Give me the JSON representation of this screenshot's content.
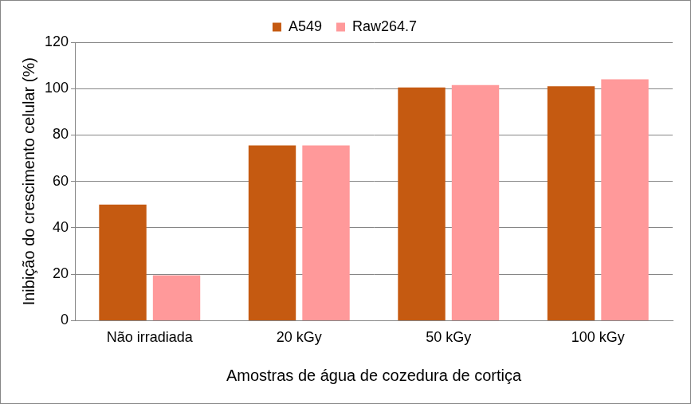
{
  "chart_data": {
    "type": "bar",
    "categories": [
      "Não irradiada",
      "20 kGy",
      "50 kGy",
      "100 kGy"
    ],
    "series": [
      {
        "name": "A549",
        "color": "#c55a11",
        "values": [
          50,
          75.5,
          100.5,
          101
        ]
      },
      {
        "name": "Raw264.7",
        "color": "#ff999a",
        "values": [
          19.5,
          75.5,
          101.5,
          104
        ]
      }
    ],
    "x_label": "Amostras de água de cozedura de cortiça",
    "y_label": "Inibição do crescimento celular (%)",
    "ylim": [
      0,
      120
    ],
    "yticks": [
      0,
      20,
      40,
      60,
      80,
      100,
      120
    ],
    "grid": true,
    "legend": "top"
  }
}
